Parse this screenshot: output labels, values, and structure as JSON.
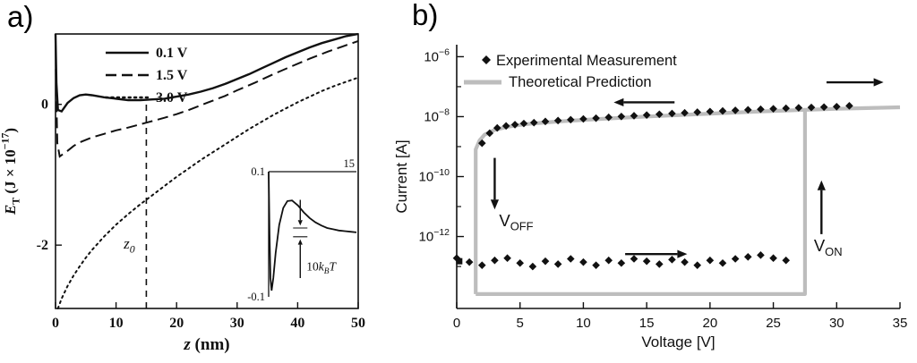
{
  "background": "#ffffff",
  "chart_data": [
    {
      "type": "line",
      "panel": "a)",
      "xlabel": "z (nm)",
      "xlabel_parts": [
        {
          "t": "z",
          "italic": true
        },
        {
          "t": " (nm)"
        }
      ],
      "ylabel": "E_T (J × 10^-17)",
      "ylabel_parts": [
        {
          "t": "E",
          "italic": true
        },
        {
          "t": "T",
          "sub": true
        },
        {
          "t": " (J × 10"
        },
        {
          "t": "−17",
          "sup": true
        },
        {
          "t": ")"
        }
      ],
      "xlim": [
        0,
        50
      ],
      "ylim": [
        -2.9,
        1.0
      ],
      "xticks": [
        0,
        10,
        20,
        30,
        40,
        50
      ],
      "yticks": [
        0,
        -2
      ],
      "grid": false,
      "legend_position": "inside top-left",
      "series": [
        {
          "name": "0.1 V",
          "line": "solid",
          "points": [
            [
              0,
              1.0
            ],
            [
              0.15,
              0.3
            ],
            [
              0.4,
              -0.08
            ],
            [
              1,
              -0.1
            ],
            [
              2,
              0.02
            ],
            [
              3,
              0.09
            ],
            [
              4,
              0.13
            ],
            [
              5,
              0.14
            ],
            [
              6,
              0.13
            ],
            [
              8,
              0.1
            ],
            [
              10,
              0.08
            ],
            [
              12,
              0.06
            ],
            [
              14,
              0.06
            ],
            [
              16,
              0.07
            ],
            [
              18,
              0.08
            ],
            [
              20,
              0.11
            ],
            [
              22,
              0.14
            ],
            [
              24,
              0.18
            ],
            [
              26,
              0.23
            ],
            [
              28,
              0.29
            ],
            [
              30,
              0.36
            ],
            [
              32,
              0.43
            ],
            [
              34,
              0.51
            ],
            [
              36,
              0.59
            ],
            [
              38,
              0.67
            ],
            [
              40,
              0.74
            ],
            [
              42,
              0.81
            ],
            [
              44,
              0.87
            ],
            [
              46,
              0.92
            ],
            [
              48,
              0.97
            ],
            [
              50,
              1.0
            ]
          ]
        },
        {
          "name": "1.5 V",
          "line": "dashed",
          "points": [
            [
              0.05,
              0.5
            ],
            [
              0.3,
              -0.55
            ],
            [
              0.7,
              -0.74
            ],
            [
              1.5,
              -0.69
            ],
            [
              2,
              -0.66
            ],
            [
              3,
              -0.59
            ],
            [
              4,
              -0.54
            ],
            [
              6,
              -0.47
            ],
            [
              8,
              -0.42
            ],
            [
              10,
              -0.37
            ],
            [
              12,
              -0.33
            ],
            [
              15,
              -0.26
            ],
            [
              18,
              -0.19
            ],
            [
              20,
              -0.14
            ],
            [
              22,
              -0.08
            ],
            [
              25,
              0.02
            ],
            [
              28,
              0.12
            ],
            [
              30,
              0.2
            ],
            [
              33,
              0.31
            ],
            [
              36,
              0.43
            ],
            [
              39,
              0.54
            ],
            [
              42,
              0.65
            ],
            [
              45,
              0.75
            ],
            [
              48,
              0.84
            ],
            [
              50,
              0.9
            ]
          ]
        },
        {
          "name": "3.0 V",
          "line": "dotted",
          "points": [
            [
              0.4,
              -2.9
            ],
            [
              1,
              -2.76
            ],
            [
              2,
              -2.58
            ],
            [
              3,
              -2.43
            ],
            [
              4,
              -2.3
            ],
            [
              5,
              -2.18
            ],
            [
              6,
              -2.07
            ],
            [
              8,
              -1.88
            ],
            [
              10,
              -1.71
            ],
            [
              12,
              -1.56
            ],
            [
              14,
              -1.42
            ],
            [
              16,
              -1.29
            ],
            [
              18,
              -1.16
            ],
            [
              20,
              -1.03
            ],
            [
              22,
              -0.91
            ],
            [
              24,
              -0.79
            ],
            [
              26,
              -0.68
            ],
            [
              28,
              -0.57
            ],
            [
              30,
              -0.46
            ],
            [
              32,
              -0.35
            ],
            [
              34,
              -0.25
            ],
            [
              36,
              -0.15
            ],
            [
              38,
              -0.06
            ],
            [
              40,
              0.03
            ],
            [
              42,
              0.11
            ],
            [
              44,
              0.19
            ],
            [
              46,
              0.26
            ],
            [
              48,
              0.32
            ],
            [
              50,
              0.38
            ]
          ]
        }
      ],
      "z0_marker": {
        "x": 15,
        "label": "z0",
        "label_parts": [
          {
            "t": "z",
            "italic": true
          },
          {
            "t": "0",
            "sub": true,
            "italic": true
          }
        ],
        "top_y": 0.05,
        "label_x": 12.2,
        "label_y": -2.05
      },
      "inset": {
        "xlim": [
          0,
          15
        ],
        "ylim": [
          -0.1,
          0.1
        ],
        "tick_labels": {
          "top_left": "0.1",
          "bottom_left": "-0.1",
          "top_right": "15"
        },
        "curve": [
          [
            0,
            0.1
          ],
          [
            0.15,
            0.0
          ],
          [
            0.3,
            -0.07
          ],
          [
            0.5,
            -0.09
          ],
          [
            0.8,
            -0.07
          ],
          [
            1.2,
            -0.03
          ],
          [
            1.8,
            0.015
          ],
          [
            2.5,
            0.042
          ],
          [
            3.2,
            0.053
          ],
          [
            4,
            0.054
          ],
          [
            5,
            0.046
          ],
          [
            6,
            0.035
          ],
          [
            7,
            0.026
          ],
          [
            8,
            0.019
          ],
          [
            9,
            0.014
          ],
          [
            10,
            0.01
          ],
          [
            11,
            0.008
          ],
          [
            12,
            0.006
          ],
          [
            13,
            0.005
          ],
          [
            14,
            0.004
          ],
          [
            15,
            0.003
          ]
        ],
        "annotation_label": "10kBT",
        "annotation_parts": [
          {
            "t": "10"
          },
          {
            "t": "k",
            "italic": true
          },
          {
            "t": "B",
            "sub": true,
            "italic": true
          },
          {
            "t": "T",
            "italic": true
          }
        ],
        "annotation_x": 5.4
      }
    },
    {
      "type": "scatter-line",
      "panel": "b)",
      "xlabel": "Voltage [V]",
      "ylabel": "Current [A]",
      "xlim": [
        0,
        35
      ],
      "xticks": [
        0,
        5,
        10,
        15,
        20,
        25,
        30,
        35
      ],
      "yscale": "log",
      "ytick_exponents": [
        -6,
        -8,
        -10,
        -12
      ],
      "yminor_exponents": [
        -7,
        -9,
        -11,
        -13
      ],
      "ylim_exponents": [
        -14.4,
        -5.6
      ],
      "legend": [
        {
          "marker": "diamond",
          "label": "Experimental Measurement"
        },
        {
          "marker": "gray-line",
          "label": "Theoretical Prediction"
        }
      ],
      "colors": {
        "experimental": "#111111",
        "theory": "#bdbdbd"
      },
      "theory": {
        "v_off_x": 1.5,
        "v_on_x": 27.5,
        "bottom_y": 1.2e-14,
        "jump_top_y": 1.7e-08,
        "upper_branch": [
          [
            1.5,
            8e-10
          ],
          [
            1.8,
            1.6e-09
          ],
          [
            2.2,
            2.5e-09
          ],
          [
            3,
            3.6e-09
          ],
          [
            4,
            4.6e-09
          ],
          [
            5,
            5.3e-09
          ],
          [
            6,
            5.9e-09
          ],
          [
            8,
            6.9e-09
          ],
          [
            10,
            7.8e-09
          ],
          [
            12,
            8.7e-09
          ],
          [
            14,
            9.6e-09
          ],
          [
            16,
            1.05e-08
          ],
          [
            18,
            1.15e-08
          ],
          [
            20,
            1.26e-08
          ],
          [
            22,
            1.37e-08
          ],
          [
            24,
            1.49e-08
          ],
          [
            26,
            1.6e-08
          ],
          [
            28,
            1.72e-08
          ],
          [
            30,
            1.82e-08
          ],
          [
            32,
            1.92e-08
          ],
          [
            35,
            2.05e-08
          ]
        ]
      },
      "experimental_upper": [
        [
          2,
          1.3e-09
        ],
        [
          2.6,
          2.8e-09
        ],
        [
          3.2,
          4.2e-09
        ],
        [
          3.9,
          4.9e-09
        ],
        [
          4.6,
          5.4e-09
        ],
        [
          5.3,
          5.9e-09
        ],
        [
          6.1,
          6.3e-09
        ],
        [
          7,
          6.9e-09
        ],
        [
          8,
          7.4e-09
        ],
        [
          9,
          7.9e-09
        ],
        [
          10,
          8.4e-09
        ],
        [
          11,
          8.9e-09
        ],
        [
          12,
          9.5e-09
        ],
        [
          13,
          1.01e-08
        ],
        [
          14,
          1.07e-08
        ],
        [
          15,
          1.13e-08
        ],
        [
          16,
          1.2e-08
        ],
        [
          17,
          1.27e-08
        ],
        [
          18,
          1.34e-08
        ],
        [
          19,
          1.41e-08
        ],
        [
          20,
          1.48e-08
        ],
        [
          21,
          1.55e-08
        ],
        [
          22,
          1.62e-08
        ],
        [
          23,
          1.69e-08
        ],
        [
          24,
          1.76e-08
        ],
        [
          25,
          1.83e-08
        ],
        [
          26,
          1.9e-08
        ],
        [
          27,
          1.97e-08
        ],
        [
          28,
          2.03e-08
        ],
        [
          29,
          2.08e-08
        ],
        [
          30,
          2.15e-08
        ],
        [
          31,
          2.3e-08
        ]
      ],
      "experimental_lower": [
        [
          0,
          1.9e-13
        ],
        [
          1,
          1.4e-13
        ],
        [
          2,
          1.1e-13
        ],
        [
          3,
          1.6e-13
        ],
        [
          4,
          1.9e-13
        ],
        [
          5,
          1.3e-13
        ],
        [
          6,
          1e-13
        ],
        [
          7,
          1.5e-13
        ],
        [
          8,
          1.2e-13
        ],
        [
          9,
          1.8e-13
        ],
        [
          10,
          1.4e-13
        ],
        [
          11,
          1.1e-13
        ],
        [
          12,
          1.6e-13
        ],
        [
          13,
          1.3e-13
        ],
        [
          14,
          1.8e-13
        ],
        [
          15,
          1.5e-13
        ],
        [
          16,
          1.2e-13
        ],
        [
          17,
          1.7e-13
        ],
        [
          18,
          1.4e-13
        ],
        [
          19,
          1.1e-13
        ],
        [
          20,
          1.6e-13
        ],
        [
          21,
          1.3e-13
        ],
        [
          22,
          1.8e-13
        ],
        [
          23,
          2.1e-13
        ],
        [
          24,
          2.4e-13
        ],
        [
          25,
          1.9e-13
        ],
        [
          26,
          1.6e-13
        ]
      ],
      "square_point": [
        0.2,
        1.5e-13
      ],
      "annotations": {
        "v_off": {
          "label": "V_OFF",
          "label_parts": [
            {
              "t": "V"
            },
            {
              "t": "OFF",
              "sub": true
            }
          ],
          "arrow_x": 3.0,
          "arrow_from_y": 4.2e-10,
          "arrow_to_y": 8e-12,
          "label_x": 3.35,
          "label_y": 2.2e-12
        },
        "v_on": {
          "label": "V_ON",
          "label_parts": [
            {
              "t": "V"
            },
            {
              "t": "ON",
              "sub": true
            }
          ],
          "arrow_x": 28.8,
          "arrow_from_y": 1.2e-12,
          "arrow_to_y": 7.5e-11,
          "label_x": 28.2,
          "label_y": 3.2e-13
        },
        "sweep_arrows": [
          {
            "dir": "left",
            "y": 3e-08,
            "x_from": 17.2,
            "x_to": 12.4
          },
          {
            "dir": "right",
            "y": 1.4e-07,
            "x_from": 29.2,
            "x_to": 33.7
          },
          {
            "dir": "right",
            "y": 2.6e-13,
            "x_from": 13.3,
            "x_to": 18.2
          }
        ]
      }
    }
  ]
}
